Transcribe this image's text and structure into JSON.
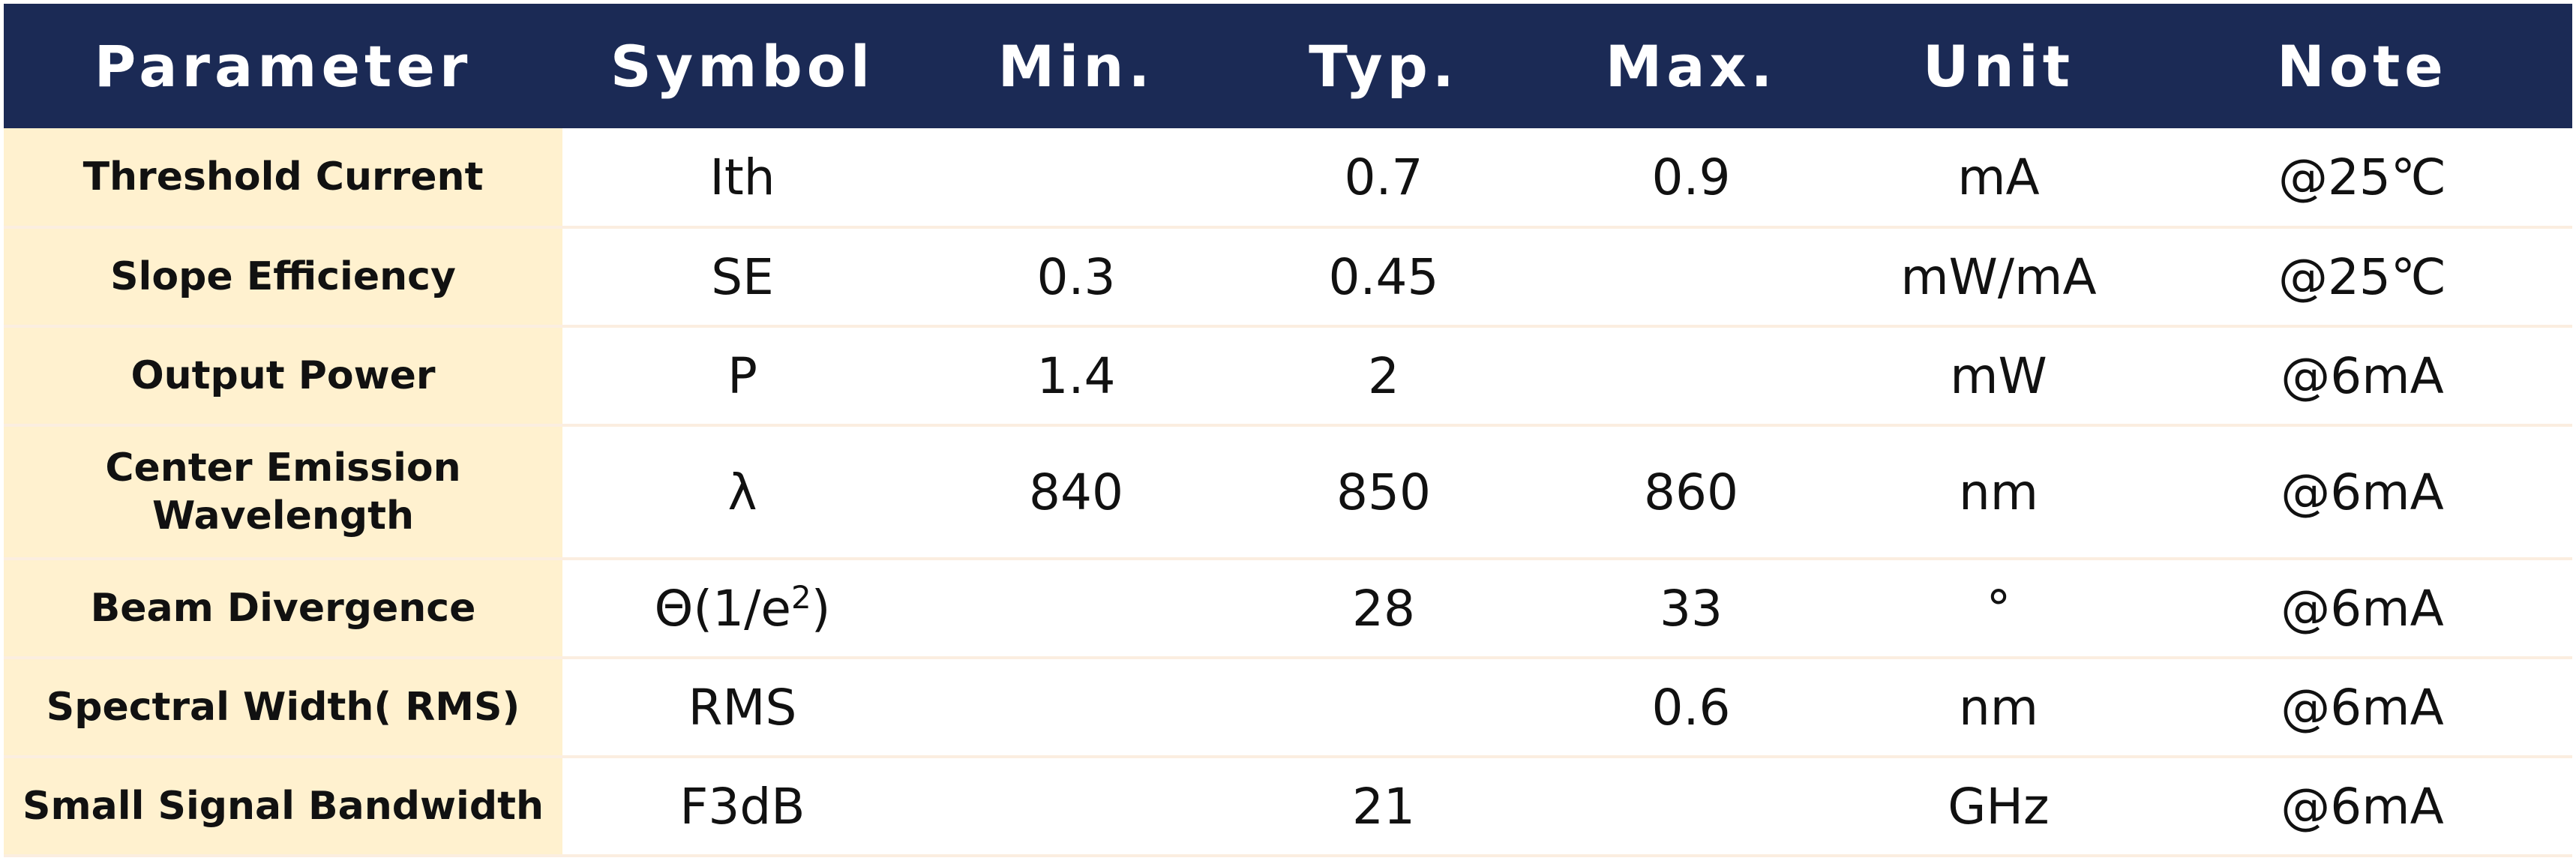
{
  "table": {
    "headers": {
      "parameter": "Parameter",
      "symbol": "Symbol",
      "min": "Min.",
      "typ": "Typ.",
      "max": "Max.",
      "unit": "Unit",
      "note": "Note"
    },
    "rows": [
      {
        "parameter": "Threshold Current",
        "symbol": "Ith",
        "min": "",
        "typ": "0.7",
        "max": "0.9",
        "unit": "mA",
        "note": "@25℃"
      },
      {
        "parameter": "Slope Efficiency",
        "symbol": "SE",
        "min": "0.3",
        "typ": "0.45",
        "max": "",
        "unit": "mW/mA",
        "note": "@25℃"
      },
      {
        "parameter": "Output Power",
        "symbol": "P",
        "min": "1.4",
        "typ": "2",
        "max": "",
        "unit": "mW",
        "note": "@6mA"
      },
      {
        "parameter_line1": "Center Emission",
        "parameter_line2": "Wavelength",
        "symbol": "λ",
        "min": "840",
        "typ": "850",
        "max": "860",
        "unit": "nm",
        "note": "@6mA"
      },
      {
        "parameter": "Beam Divergence",
        "symbol_base": "Θ(1/e",
        "symbol_sup": "2",
        "symbol_close": ")",
        "min": "",
        "typ": "28",
        "max": "33",
        "unit": "°",
        "note": "@6mA"
      },
      {
        "parameter": "Spectral Width( RMS)",
        "symbol": "RMS",
        "min": "",
        "typ": "",
        "max": "0.6",
        "unit": "nm",
        "note": "@6mA"
      },
      {
        "parameter": "Small Signal Bandwidth",
        "symbol": "F3dB",
        "min": "",
        "typ": "21",
        "max": "",
        "unit": "GHz",
        "note": "@6mA"
      }
    ]
  },
  "colors": {
    "header_bg": "#1b2a55",
    "header_text": "#ffffff",
    "param_bg": "#fff1cf",
    "divider": "#fbeee0"
  }
}
